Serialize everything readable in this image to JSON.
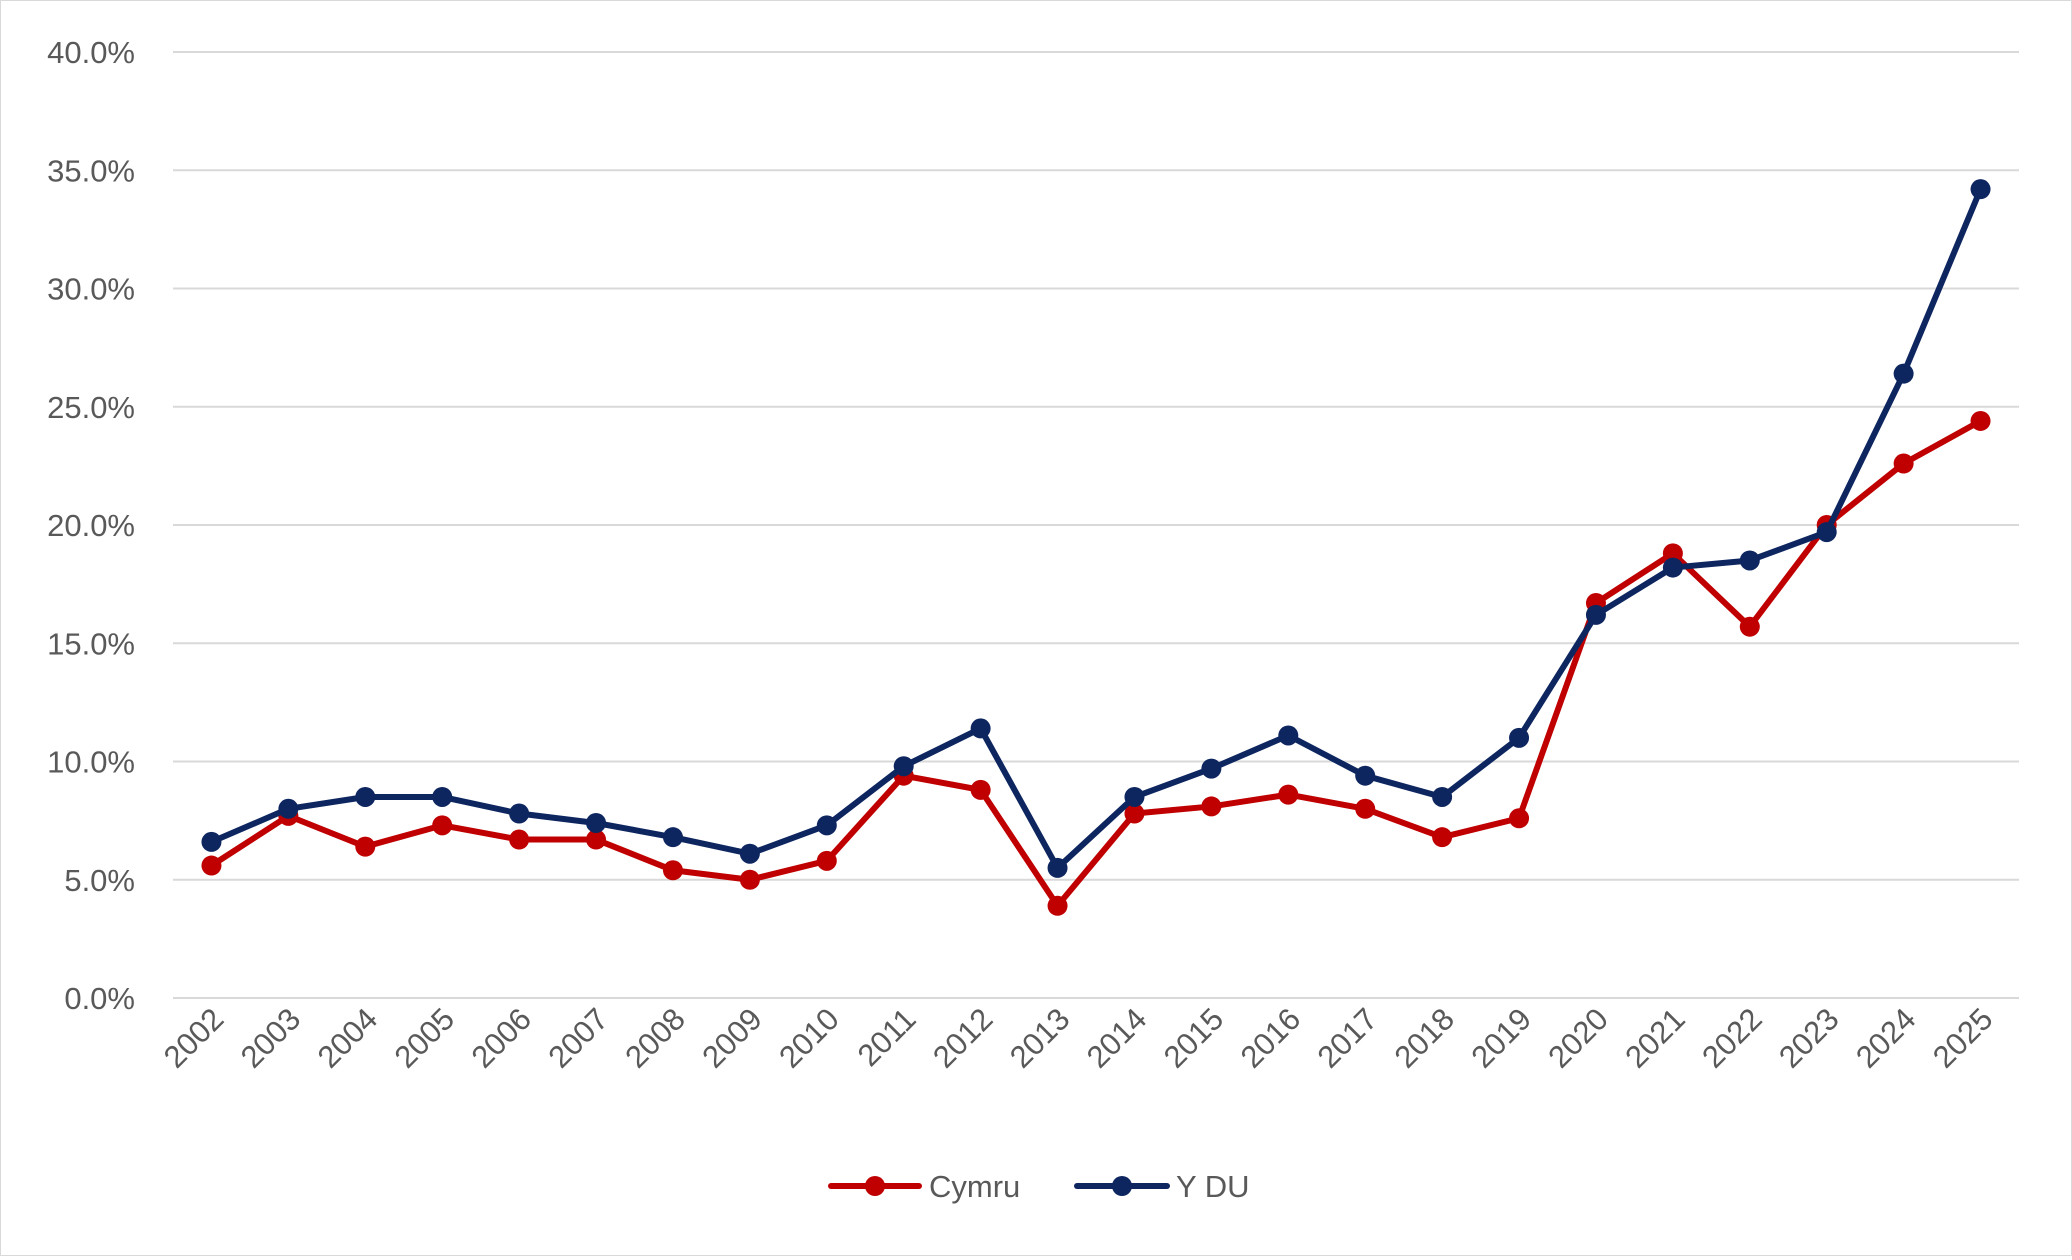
{
  "chart_data": {
    "type": "line",
    "title": "",
    "xlabel": "",
    "ylabel": "",
    "ylim": [
      0,
      40
    ],
    "ytick_values": [
      0,
      5,
      10,
      15,
      20,
      25,
      30,
      35,
      40
    ],
    "ytick_labels": [
      "0.0%",
      "5.0%",
      "10.0%",
      "15.0%",
      "20.0%",
      "25.0%",
      "30.0%",
      "35.0%",
      "40.0%"
    ],
    "categories": [
      "2002",
      "2003",
      "2004",
      "2005",
      "2006",
      "2007",
      "2008",
      "2009",
      "2010",
      "2011",
      "2012",
      "2013",
      "2014",
      "2015",
      "2016",
      "2017",
      "2018",
      "2019",
      "2020",
      "2021",
      "2022",
      "2023",
      "2024",
      "2025"
    ],
    "grid": "horizontal",
    "legend_position": "bottom",
    "series": [
      {
        "name": "Cymru",
        "color": "#c00000",
        "values": [
          5.6,
          7.7,
          6.4,
          7.3,
          6.7,
          6.7,
          5.4,
          5.0,
          5.8,
          9.4,
          8.8,
          3.9,
          7.8,
          8.1,
          8.6,
          8.0,
          6.8,
          7.6,
          16.7,
          18.8,
          15.7,
          20.0,
          22.6,
          24.4
        ]
      },
      {
        "name": "Y DU",
        "color": "#0e2660",
        "values": [
          6.6,
          8.0,
          8.5,
          8.5,
          7.8,
          7.4,
          6.8,
          6.1,
          7.3,
          9.8,
          11.4,
          5.5,
          8.5,
          9.7,
          11.1,
          9.4,
          8.5,
          11.0,
          16.2,
          18.2,
          18.5,
          19.7,
          26.4,
          34.2
        ]
      }
    ]
  }
}
